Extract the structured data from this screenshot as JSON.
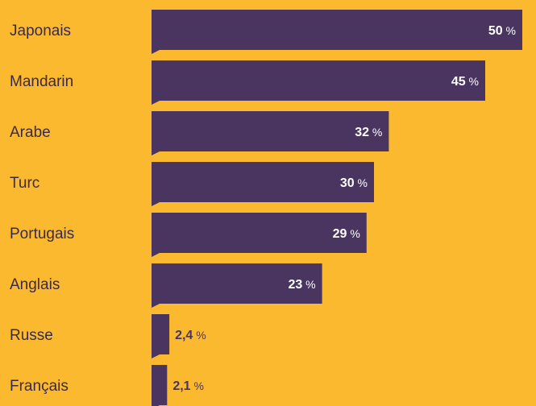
{
  "colors": {
    "background": "#FBB92F",
    "bar": "#4A3560",
    "label_text": "#3A2A4A",
    "value_inside": "#FFFFFF",
    "value_outside": "#4A3560"
  },
  "chart_data": {
    "type": "bar",
    "orientation": "horizontal",
    "title": "",
    "xlabel": "",
    "ylabel": "",
    "xlim": [
      0,
      50
    ],
    "grid": false,
    "legend": "none",
    "unit_symbol": "%",
    "categories": [
      "Japonais",
      "Mandarin",
      "Arabe",
      "Turc",
      "Portugais",
      "Anglais",
      "Russe",
      "Français"
    ],
    "values": [
      50,
      45,
      32,
      30,
      29,
      23,
      2.4,
      2.1
    ],
    "value_labels": [
      "50",
      "45",
      "32",
      "30",
      "29",
      "23",
      "2,4",
      "2,1"
    ]
  }
}
